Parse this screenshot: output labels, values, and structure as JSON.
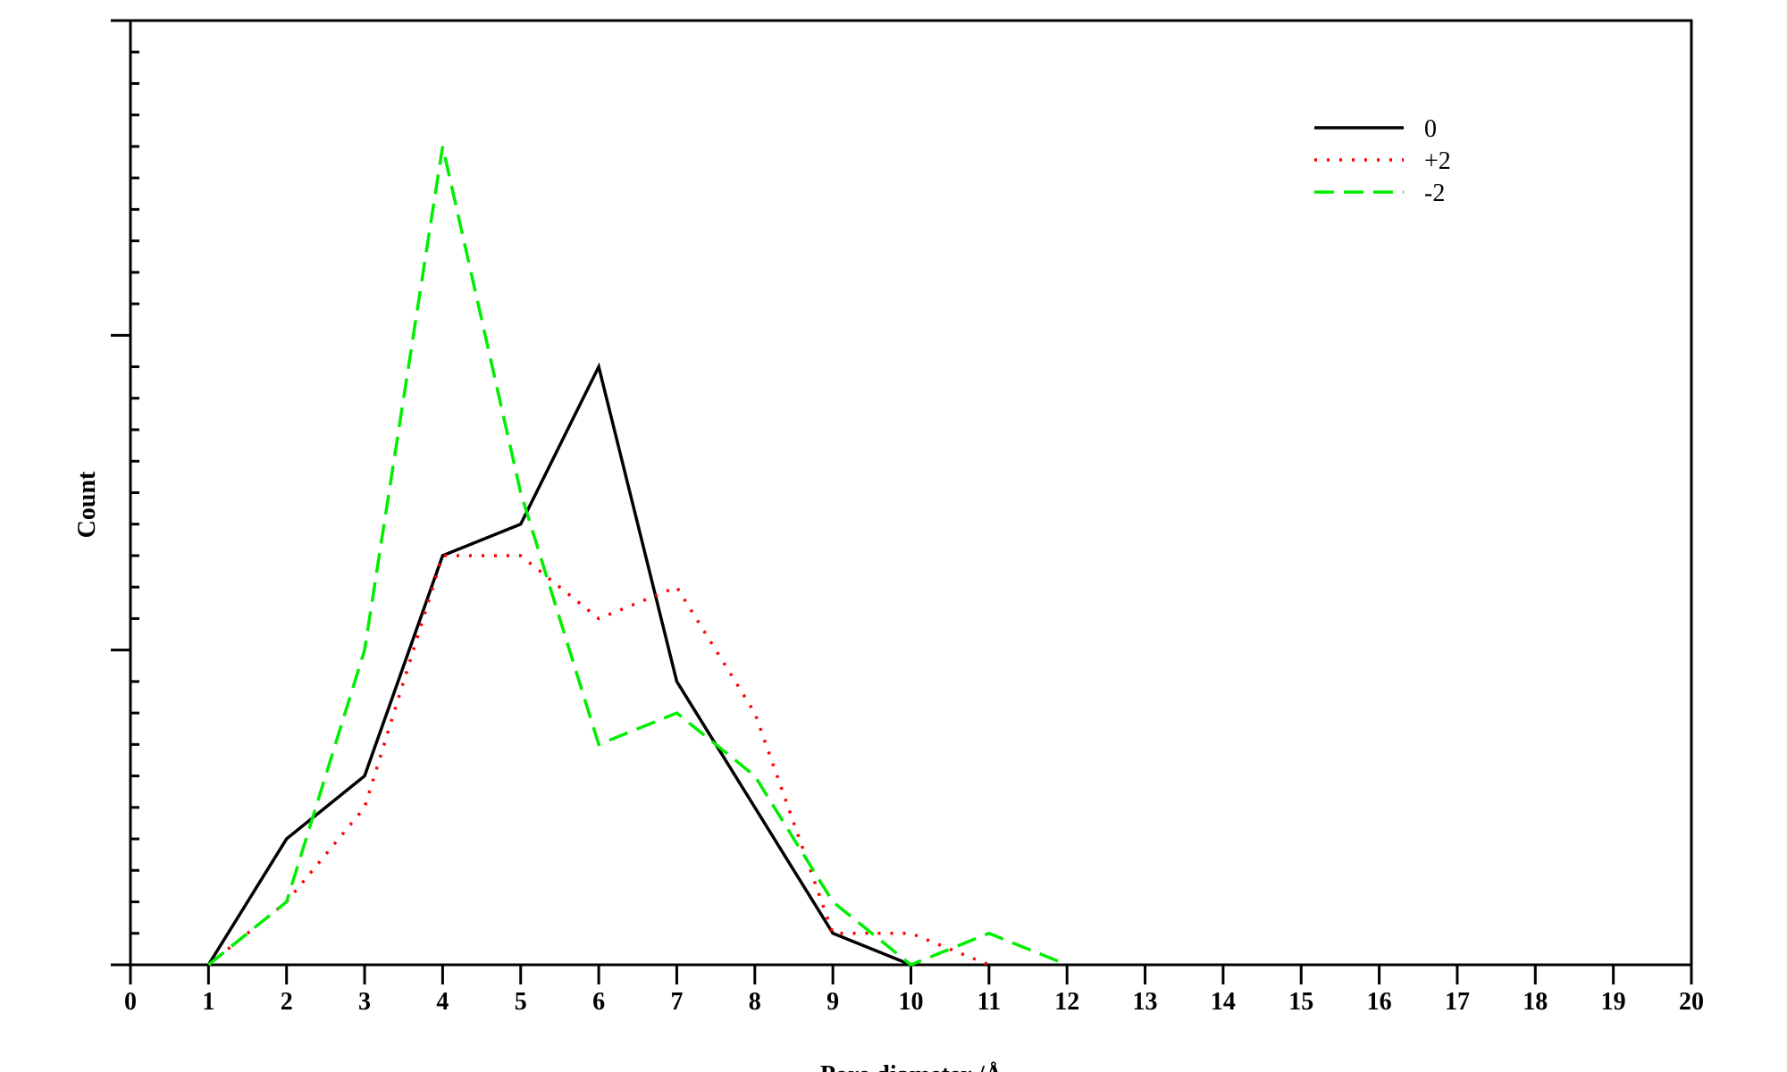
{
  "chart_data": {
    "type": "line",
    "title": "",
    "xlabel": "Pore diameter /Å",
    "ylabel": "Count",
    "xlim": [
      0,
      20
    ],
    "ylim": [
      0,
      30
    ],
    "x_ticks": [
      "0",
      "1",
      "2",
      "3",
      "4",
      "5",
      "6",
      "7",
      "8",
      "9",
      "10",
      "11",
      "12",
      "13",
      "14",
      "15",
      "16",
      "17",
      "18",
      "19",
      "20"
    ],
    "y_tick_labels_shown": false,
    "y_major_step": 10,
    "y_minor_step": 1,
    "grid": false,
    "legend_position": "top-right",
    "series": [
      {
        "name": "0",
        "color": "#000000",
        "style": "solid",
        "x": [
          1,
          2,
          3,
          4,
          5,
          6,
          7,
          8,
          9,
          10
        ],
        "y": [
          0,
          4,
          6,
          13,
          14,
          19,
          9,
          5,
          1,
          0
        ]
      },
      {
        "name": "+2",
        "color": "#ff0000",
        "style": "dotted",
        "x": [
          1,
          2,
          3,
          4,
          5,
          6,
          7,
          8,
          9,
          10,
          11
        ],
        "y": [
          0,
          2,
          5,
          13,
          13,
          11,
          12,
          8,
          1,
          1,
          0
        ]
      },
      {
        "name": "-2",
        "color": "#00ee00",
        "style": "dashed",
        "x": [
          1,
          2,
          3,
          4,
          5,
          6,
          7,
          8,
          9,
          10,
          11,
          12
        ],
        "y": [
          0,
          2,
          10,
          26,
          15,
          7,
          8,
          6,
          2,
          0,
          1,
          0
        ]
      }
    ]
  }
}
